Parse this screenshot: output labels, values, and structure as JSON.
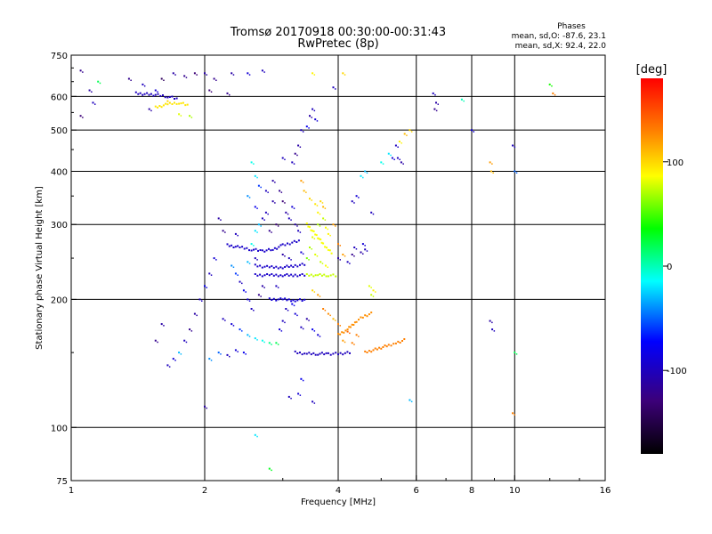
{
  "chart_data": {
    "type": "scatter",
    "title": "Tromsø 20170918 00:30:00-00:31:43",
    "subtitle": "RwPretec (8p)",
    "xlabel": "Frequency [MHz]",
    "ylabel": "Stationary phase Virtual Height [km]",
    "x_scale": "log",
    "y_scale": "log",
    "xlim": [
      1,
      16
    ],
    "ylim": [
      75,
      750
    ],
    "x_ticks": [
      1,
      2,
      4,
      6,
      8,
      10,
      16
    ],
    "y_ticks": [
      75,
      100,
      200,
      300,
      400,
      500,
      600,
      750
    ],
    "x_grid": [
      2,
      4,
      6,
      8,
      10
    ],
    "y_grid": [
      100,
      200,
      300,
      400,
      500,
      600
    ],
    "grid": true,
    "stats": {
      "heading": "Phases",
      "line_o": "mean, sd,O: -87.6, 23.1",
      "line_x": "mean, sd,X:  92.4, 22.0"
    },
    "colorbar": {
      "label": "[deg]",
      "min": -180,
      "max": 180,
      "ticks": [
        100,
        0,
        -100
      ],
      "colors": [
        "#000000",
        "#3c0078",
        "#0000ff",
        "#00ffff",
        "#00ff00",
        "#ffff00",
        "#ff8000",
        "#ff0000"
      ]
    },
    "traces": [
      {
        "phase": -95,
        "points": [
          [
            2.25,
            268
          ],
          [
            2.4,
            265
          ],
          [
            2.55,
            262
          ],
          [
            2.7,
            260
          ],
          [
            2.85,
            262
          ],
          [
            3.0,
            268
          ],
          [
            3.15,
            272
          ],
          [
            3.3,
            275
          ]
        ]
      },
      {
        "phase": -95,
        "points": [
          [
            2.6,
            240
          ],
          [
            2.8,
            238
          ],
          [
            3.0,
            238
          ],
          [
            3.2,
            240
          ],
          [
            3.4,
            242
          ]
        ]
      },
      {
        "phase": -95,
        "points": [
          [
            2.6,
            228
          ],
          [
            2.8,
            228
          ],
          [
            3.0,
            228
          ],
          [
            3.2,
            228
          ],
          [
            3.4,
            228
          ]
        ]
      },
      {
        "phase": 75,
        "points": [
          [
            3.4,
            228
          ],
          [
            3.6,
            228
          ],
          [
            3.8,
            228
          ],
          [
            4.0,
            227
          ]
        ]
      },
      {
        "phase": -90,
        "points": [
          [
            2.8,
            200
          ],
          [
            3.0,
            200
          ],
          [
            3.2,
            199
          ],
          [
            3.4,
            199
          ]
        ]
      },
      {
        "phase": -100,
        "points": [
          [
            3.2,
            150
          ],
          [
            3.4,
            149
          ],
          [
            3.6,
            149
          ],
          [
            3.8,
            149
          ],
          [
            4.0,
            149
          ],
          [
            4.3,
            150
          ]
        ]
      },
      {
        "phase": 130,
        "points": [
          [
            4.6,
            150
          ],
          [
            4.8,
            152
          ],
          [
            5.0,
            154
          ],
          [
            5.2,
            156
          ],
          [
            5.4,
            158
          ],
          [
            5.7,
            161
          ]
        ]
      },
      {
        "phase": 125,
        "points": [
          [
            4.0,
            165
          ],
          [
            4.2,
            170
          ],
          [
            4.4,
            178
          ],
          [
            4.6,
            183
          ],
          [
            4.8,
            186
          ]
        ]
      },
      {
        "phase": 85,
        "points": [
          [
            3.4,
            300
          ],
          [
            3.5,
            290
          ],
          [
            3.6,
            280
          ],
          [
            3.7,
            270
          ],
          [
            3.8,
            262
          ],
          [
            3.9,
            256
          ]
        ]
      },
      {
        "phase": -100,
        "points": [
          [
            1.4,
            610
          ],
          [
            1.55,
            605
          ],
          [
            1.65,
            600
          ],
          [
            1.75,
            590
          ]
        ]
      },
      {
        "phase": 95,
        "points": [
          [
            1.55,
            565
          ],
          [
            1.65,
            575
          ],
          [
            1.75,
            580
          ],
          [
            1.85,
            570
          ]
        ]
      }
    ],
    "points": [
      {
        "x": 1.05,
        "y": 690,
        "phase": -120
      },
      {
        "x": 1.1,
        "y": 620,
        "phase": -110
      },
      {
        "x": 1.12,
        "y": 580,
        "phase": -100
      },
      {
        "x": 1.05,
        "y": 540,
        "phase": -130
      },
      {
        "x": 1.15,
        "y": 650,
        "phase": 20
      },
      {
        "x": 1.35,
        "y": 660,
        "phase": -120
      },
      {
        "x": 1.45,
        "y": 640,
        "phase": -100
      },
      {
        "x": 1.5,
        "y": 560,
        "phase": -110
      },
      {
        "x": 1.55,
        "y": 620,
        "phase": -90
      },
      {
        "x": 1.6,
        "y": 660,
        "phase": -140
      },
      {
        "x": 1.7,
        "y": 680,
        "phase": -110
      },
      {
        "x": 1.8,
        "y": 670,
        "phase": -120
      },
      {
        "x": 1.9,
        "y": 680,
        "phase": -130
      },
      {
        "x": 2.0,
        "y": 680,
        "phase": -110
      },
      {
        "x": 2.1,
        "y": 660,
        "phase": -120
      },
      {
        "x": 2.3,
        "y": 680,
        "phase": -110
      },
      {
        "x": 2.5,
        "y": 680,
        "phase": -90
      },
      {
        "x": 2.7,
        "y": 690,
        "phase": -100
      },
      {
        "x": 2.05,
        "y": 620,
        "phase": -130
      },
      {
        "x": 2.25,
        "y": 610,
        "phase": -120
      },
      {
        "x": 1.85,
        "y": 540,
        "phase": 70
      },
      {
        "x": 1.75,
        "y": 545,
        "phase": 80
      },
      {
        "x": 1.65,
        "y": 585,
        "phase": 100
      },
      {
        "x": 3.5,
        "y": 560,
        "phase": -100
      },
      {
        "x": 3.45,
        "y": 540,
        "phase": -110
      },
      {
        "x": 3.55,
        "y": 530,
        "phase": -90
      },
      {
        "x": 3.4,
        "y": 510,
        "phase": -80
      },
      {
        "x": 3.3,
        "y": 500,
        "phase": -100
      },
      {
        "x": 3.9,
        "y": 630,
        "phase": -100
      },
      {
        "x": 3.5,
        "y": 680,
        "phase": 90
      },
      {
        "x": 4.1,
        "y": 680,
        "phase": 100
      },
      {
        "x": 5.0,
        "y": 420,
        "phase": -10
      },
      {
        "x": 5.2,
        "y": 440,
        "phase": -20
      },
      {
        "x": 5.4,
        "y": 460,
        "phase": -100
      },
      {
        "x": 5.5,
        "y": 470,
        "phase": 90
      },
      {
        "x": 5.65,
        "y": 490,
        "phase": 110
      },
      {
        "x": 5.8,
        "y": 500,
        "phase": 100
      },
      {
        "x": 5.45,
        "y": 430,
        "phase": -100
      },
      {
        "x": 5.55,
        "y": 420,
        "phase": -110
      },
      {
        "x": 5.3,
        "y": 430,
        "phase": -90
      },
      {
        "x": 6.6,
        "y": 560,
        "phase": -120
      },
      {
        "x": 6.65,
        "y": 580,
        "phase": -110
      },
      {
        "x": 6.55,
        "y": 610,
        "phase": -100
      },
      {
        "x": 8.0,
        "y": 500,
        "phase": -90
      },
      {
        "x": 7.6,
        "y": 590,
        "phase": 0
      },
      {
        "x": 8.8,
        "y": 420,
        "phase": 120
      },
      {
        "x": 8.85,
        "y": 400,
        "phase": 110
      },
      {
        "x": 9.9,
        "y": 460,
        "phase": -100
      },
      {
        "x": 10.0,
        "y": 400,
        "phase": -50
      },
      {
        "x": 12.0,
        "y": 640,
        "phase": 40
      },
      {
        "x": 12.2,
        "y": 610,
        "phase": 130
      },
      {
        "x": 2.55,
        "y": 420,
        "phase": -10
      },
      {
        "x": 2.6,
        "y": 390,
        "phase": -20
      },
      {
        "x": 2.65,
        "y": 370,
        "phase": -60
      },
      {
        "x": 2.75,
        "y": 360,
        "phase": -100
      },
      {
        "x": 2.85,
        "y": 380,
        "phase": -110
      },
      {
        "x": 2.95,
        "y": 360,
        "phase": -120
      },
      {
        "x": 3.0,
        "y": 340,
        "phase": -130
      },
      {
        "x": 3.05,
        "y": 320,
        "phase": -110
      },
      {
        "x": 3.1,
        "y": 310,
        "phase": -100
      },
      {
        "x": 3.15,
        "y": 330,
        "phase": -90
      },
      {
        "x": 2.9,
        "y": 300,
        "phase": -130
      },
      {
        "x": 2.8,
        "y": 290,
        "phase": -120
      },
      {
        "x": 2.7,
        "y": 310,
        "phase": -100
      },
      {
        "x": 2.6,
        "y": 330,
        "phase": -80
      },
      {
        "x": 2.5,
        "y": 350,
        "phase": -40
      },
      {
        "x": 3.3,
        "y": 380,
        "phase": 120
      },
      {
        "x": 3.35,
        "y": 360,
        "phase": 110
      },
      {
        "x": 3.45,
        "y": 345,
        "phase": 100
      },
      {
        "x": 3.55,
        "y": 335,
        "phase": 95
      },
      {
        "x": 3.6,
        "y": 320,
        "phase": 90
      },
      {
        "x": 3.25,
        "y": 460,
        "phase": -110
      },
      {
        "x": 3.15,
        "y": 420,
        "phase": -100
      },
      {
        "x": 3.2,
        "y": 440,
        "phase": -120
      },
      {
        "x": 3.0,
        "y": 430,
        "phase": -100
      },
      {
        "x": 2.15,
        "y": 310,
        "phase": -110
      },
      {
        "x": 2.2,
        "y": 290,
        "phase": -120
      },
      {
        "x": 2.35,
        "y": 285,
        "phase": -100
      },
      {
        "x": 2.1,
        "y": 250,
        "phase": -90
      },
      {
        "x": 2.05,
        "y": 230,
        "phase": -100
      },
      {
        "x": 2.0,
        "y": 215,
        "phase": -80
      },
      {
        "x": 1.95,
        "y": 200,
        "phase": -100
      },
      {
        "x": 1.9,
        "y": 185,
        "phase": -110
      },
      {
        "x": 1.85,
        "y": 170,
        "phase": -120
      },
      {
        "x": 1.8,
        "y": 160,
        "phase": -100
      },
      {
        "x": 1.75,
        "y": 150,
        "phase": -30
      },
      {
        "x": 1.7,
        "y": 145,
        "phase": -90
      },
      {
        "x": 1.65,
        "y": 140,
        "phase": -100
      },
      {
        "x": 1.6,
        "y": 175,
        "phase": -110
      },
      {
        "x": 1.55,
        "y": 160,
        "phase": -120
      },
      {
        "x": 2.2,
        "y": 180,
        "phase": -100
      },
      {
        "x": 2.3,
        "y": 175,
        "phase": -90
      },
      {
        "x": 2.4,
        "y": 170,
        "phase": -60
      },
      {
        "x": 2.5,
        "y": 165,
        "phase": -30
      },
      {
        "x": 2.6,
        "y": 162,
        "phase": -20
      },
      {
        "x": 2.7,
        "y": 160,
        "phase": -10
      },
      {
        "x": 2.8,
        "y": 158,
        "phase": 10
      },
      {
        "x": 2.9,
        "y": 158,
        "phase": 20
      },
      {
        "x": 2.45,
        "y": 150,
        "phase": -80
      },
      {
        "x": 2.35,
        "y": 152,
        "phase": -90
      },
      {
        "x": 2.25,
        "y": 148,
        "phase": -100
      },
      {
        "x": 2.15,
        "y": 150,
        "phase": -50
      },
      {
        "x": 2.05,
        "y": 145,
        "phase": -40
      },
      {
        "x": 2.0,
        "y": 112,
        "phase": -110
      },
      {
        "x": 2.6,
        "y": 96,
        "phase": -20
      },
      {
        "x": 2.8,
        "y": 80,
        "phase": 30
      },
      {
        "x": 3.1,
        "y": 118,
        "phase": -100
      },
      {
        "x": 3.25,
        "y": 120,
        "phase": -90
      },
      {
        "x": 3.3,
        "y": 130,
        "phase": -80
      },
      {
        "x": 3.5,
        "y": 115,
        "phase": -100
      },
      {
        "x": 5.8,
        "y": 116,
        "phase": -30
      },
      {
        "x": 9.9,
        "y": 108,
        "phase": 130
      },
      {
        "x": 10.0,
        "y": 150,
        "phase": 20
      },
      {
        "x": 8.8,
        "y": 178,
        "phase": -110
      },
      {
        "x": 8.9,
        "y": 170,
        "phase": -100
      },
      {
        "x": 3.5,
        "y": 280,
        "phase": 80
      },
      {
        "x": 3.6,
        "y": 300,
        "phase": 70
      },
      {
        "x": 3.7,
        "y": 310,
        "phase": 75
      },
      {
        "x": 3.75,
        "y": 295,
        "phase": 85
      },
      {
        "x": 3.8,
        "y": 285,
        "phase": 90
      },
      {
        "x": 3.65,
        "y": 340,
        "phase": 100
      },
      {
        "x": 3.7,
        "y": 330,
        "phase": 110
      },
      {
        "x": 3.9,
        "y": 300,
        "phase": 120
      },
      {
        "x": 4.0,
        "y": 270,
        "phase": 130
      },
      {
        "x": 4.1,
        "y": 255,
        "phase": 120
      },
      {
        "x": 4.0,
        "y": 250,
        "phase": -110
      },
      {
        "x": 4.2,
        "y": 245,
        "phase": -100
      },
      {
        "x": 4.3,
        "y": 255,
        "phase": -120
      },
      {
        "x": 4.35,
        "y": 265,
        "phase": -100
      },
      {
        "x": 4.5,
        "y": 258,
        "phase": -110
      },
      {
        "x": 4.6,
        "y": 262,
        "phase": -100
      },
      {
        "x": 4.55,
        "y": 270,
        "phase": -90
      },
      {
        "x": 4.7,
        "y": 215,
        "phase": 80
      },
      {
        "x": 4.8,
        "y": 210,
        "phase": 90
      },
      {
        "x": 4.75,
        "y": 205,
        "phase": 75
      },
      {
        "x": 3.5,
        "y": 210,
        "phase": 100
      },
      {
        "x": 3.6,
        "y": 205,
        "phase": 120
      },
      {
        "x": 3.7,
        "y": 190,
        "phase": 130
      },
      {
        "x": 3.8,
        "y": 185,
        "phase": 125
      },
      {
        "x": 3.9,
        "y": 180,
        "phase": 110
      },
      {
        "x": 4.0,
        "y": 175,
        "phase": 130
      },
      {
        "x": 4.2,
        "y": 168,
        "phase": 140
      },
      {
        "x": 4.4,
        "y": 165,
        "phase": 130
      },
      {
        "x": 4.1,
        "y": 160,
        "phase": 120
      },
      {
        "x": 4.3,
        "y": 158,
        "phase": 130
      },
      {
        "x": 3.5,
        "y": 170,
        "phase": -80
      },
      {
        "x": 3.6,
        "y": 165,
        "phase": -90
      },
      {
        "x": 3.3,
        "y": 172,
        "phase": -100
      },
      {
        "x": 3.4,
        "y": 180,
        "phase": -110
      },
      {
        "x": 3.2,
        "y": 185,
        "phase": -90
      },
      {
        "x": 3.0,
        "y": 178,
        "phase": -100
      },
      {
        "x": 2.95,
        "y": 170,
        "phase": -90
      },
      {
        "x": 3.05,
        "y": 190,
        "phase": -100
      },
      {
        "x": 3.15,
        "y": 195,
        "phase": -80
      },
      {
        "x": 2.9,
        "y": 215,
        "phase": -100
      },
      {
        "x": 2.7,
        "y": 215,
        "phase": -110
      },
      {
        "x": 2.65,
        "y": 205,
        "phase": -120
      },
      {
        "x": 2.55,
        "y": 190,
        "phase": -100
      },
      {
        "x": 2.5,
        "y": 200,
        "phase": -90
      },
      {
        "x": 2.45,
        "y": 210,
        "phase": -80
      },
      {
        "x": 2.4,
        "y": 220,
        "phase": -100
      },
      {
        "x": 2.35,
        "y": 230,
        "phase": -60
      },
      {
        "x": 2.3,
        "y": 240,
        "phase": -40
      },
      {
        "x": 2.5,
        "y": 245,
        "phase": -30
      },
      {
        "x": 2.6,
        "y": 250,
        "phase": -100
      },
      {
        "x": 3.0,
        "y": 255,
        "phase": -110
      },
      {
        "x": 3.1,
        "y": 250,
        "phase": -100
      },
      {
        "x": 3.3,
        "y": 258,
        "phase": -90
      },
      {
        "x": 3.25,
        "y": 290,
        "phase": -100
      },
      {
        "x": 3.2,
        "y": 300,
        "phase": -110
      },
      {
        "x": 3.4,
        "y": 250,
        "phase": 60
      },
      {
        "x": 3.45,
        "y": 265,
        "phase": 70
      },
      {
        "x": 3.55,
        "y": 255,
        "phase": 80
      },
      {
        "x": 3.65,
        "y": 245,
        "phase": 75
      },
      {
        "x": 3.75,
        "y": 240,
        "phase": 85
      },
      {
        "x": 4.3,
        "y": 340,
        "phase": -100
      },
      {
        "x": 4.4,
        "y": 350,
        "phase": -90
      },
      {
        "x": 4.6,
        "y": 400,
        "phase": -30
      },
      {
        "x": 4.5,
        "y": 390,
        "phase": -20
      },
      {
        "x": 4.75,
        "y": 320,
        "phase": -100
      },
      {
        "x": 2.55,
        "y": 270,
        "phase": -10
      },
      {
        "x": 2.6,
        "y": 290,
        "phase": -20
      },
      {
        "x": 2.65,
        "y": 300,
        "phase": -30
      },
      {
        "x": 2.75,
        "y": 320,
        "phase": -100
      },
      {
        "x": 2.85,
        "y": 340,
        "phase": -110
      }
    ]
  }
}
